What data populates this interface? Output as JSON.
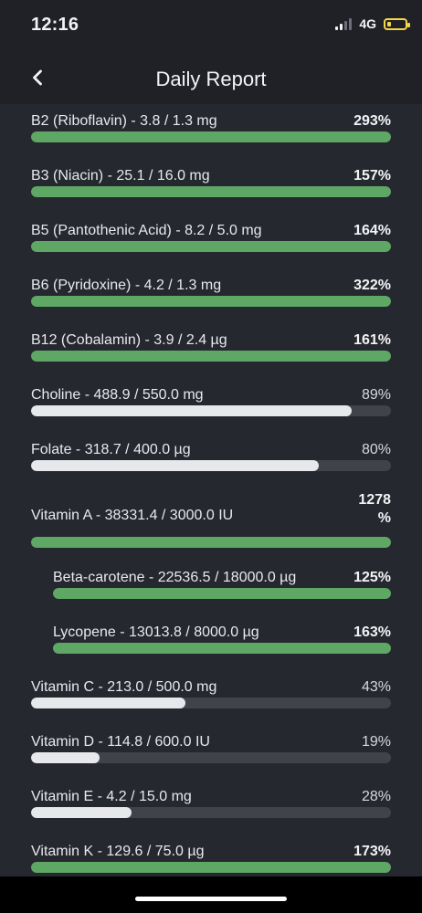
{
  "status_bar": {
    "time": "12:16",
    "network": "4G",
    "battery_level_fraction": 0.2,
    "battery_color": "#f7d54a"
  },
  "header": {
    "back_icon": "chevron-left-icon",
    "title": "Daily Report"
  },
  "colors": {
    "background": "#25282e",
    "bar_over_target": "#5fa764",
    "bar_under_target": "#e7e8ec",
    "bar_track": "#404349"
  },
  "nutrients": [
    {
      "label": "B2 (Riboflavin) - 3.8 / 1.3 mg",
      "percent": "293%",
      "fill_fraction": 1.0
    },
    {
      "label": "B3 (Niacin) - 25.1 / 16.0 mg",
      "percent": "157%",
      "fill_fraction": 1.0
    },
    {
      "label": "B5 (Pantothenic Acid) - 8.2 / 5.0 mg",
      "percent": "164%",
      "fill_fraction": 1.0
    },
    {
      "label": "B6 (Pyridoxine) - 4.2 / 1.3 mg",
      "percent": "322%",
      "fill_fraction": 1.0
    },
    {
      "label": "B12 (Cobalamin) - 3.9 / 2.4 µg",
      "percent": "161%",
      "fill_fraction": 1.0
    },
    {
      "label": "Choline - 488.9 / 550.0 mg",
      "percent": "89%",
      "fill_fraction": 0.89
    },
    {
      "label": "Folate - 318.7 / 400.0 µg",
      "percent": "80%",
      "fill_fraction": 0.8
    },
    {
      "label": "Vitamin A - 38331.4 / 3000.0 IU",
      "percent": "1278 %",
      "fill_fraction": 1.0
    },
    {
      "label": "Beta-carotene - 22536.5 / 18000.0 µg",
      "percent": "125%",
      "fill_fraction": 1.0
    },
    {
      "label": "Lycopene - 13013.8 / 8000.0 µg",
      "percent": "163%",
      "fill_fraction": 1.0
    },
    {
      "label": "Vitamin C - 213.0 / 500.0 mg",
      "percent": "43%",
      "fill_fraction": 0.43
    },
    {
      "label": "Vitamin D - 114.8 / 600.0 IU",
      "percent": "19%",
      "fill_fraction": 0.19
    },
    {
      "label": "Vitamin E - 4.2 / 15.0 mg",
      "percent": "28%",
      "fill_fraction": 0.28
    },
    {
      "label": "Vitamin K - 129.6 / 75.0 µg",
      "percent": "173%",
      "fill_fraction": 1.0
    }
  ]
}
